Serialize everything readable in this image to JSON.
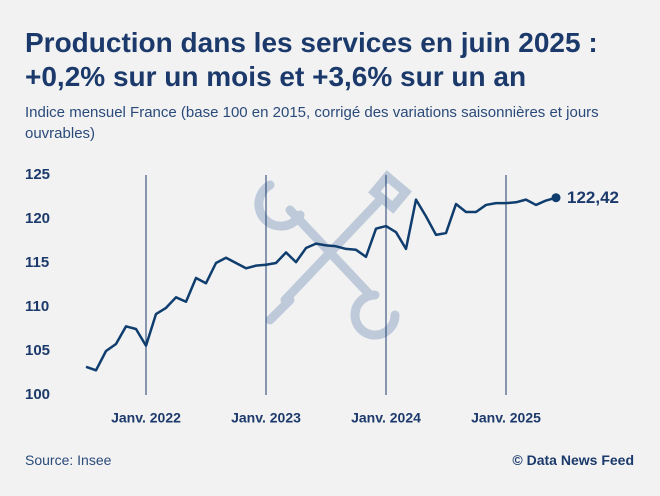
{
  "title": "Production dans les services en juin 2025 : +0,2% sur un mois et +3,6% sur un an",
  "chart_data": {
    "type": "line",
    "subtitle": "Indice mensuel France (base 100 en 2015, corrigé des variations saisonnières et jours ouvrables)",
    "categories": [
      null,
      null,
      null,
      null,
      null,
      null,
      "Janv. 2022",
      null,
      null,
      null,
      null,
      null,
      null,
      null,
      null,
      null,
      null,
      null,
      "Janv. 2023",
      null,
      null,
      null,
      null,
      null,
      null,
      null,
      null,
      null,
      null,
      null,
      "Janv. 2024",
      null,
      null,
      null,
      null,
      null,
      null,
      null,
      null,
      null,
      null,
      null,
      "Janv. 2025",
      null,
      null,
      null,
      null,
      null
    ],
    "series": [
      {
        "color": "#0f3d6e",
        "values": [
          103.2,
          102.8,
          105.0,
          105.8,
          107.8,
          107.5,
          105.6,
          109.2,
          109.9,
          111.1,
          110.6,
          113.3,
          112.7,
          115.0,
          115.6,
          115.0,
          114.4,
          114.7,
          114.8,
          115.0,
          116.2,
          115.1,
          116.7,
          117.2,
          117.0,
          116.9,
          116.6,
          116.5,
          115.7,
          118.9,
          119.2,
          118.5,
          116.6,
          122.2,
          120.3,
          118.2,
          118.4,
          121.7,
          120.8,
          120.8,
          121.6,
          121.8,
          121.8,
          121.9,
          122.2,
          121.6,
          122.1,
          122.42
        ],
        "value_labels": [
          null,
          null,
          null,
          null,
          null,
          null,
          null,
          null,
          null,
          null,
          null,
          null,
          null,
          null,
          null,
          null,
          null,
          null,
          null,
          null,
          null,
          null,
          null,
          null,
          null,
          null,
          null,
          null,
          null,
          null,
          null,
          null,
          null,
          null,
          null,
          null,
          null,
          null,
          null,
          null,
          null,
          null,
          null,
          null,
          null,
          null,
          null,
          "122,42"
        ]
      }
    ],
    "ylim": [
      100,
      125
    ],
    "yticks": [
      100,
      105,
      110,
      115,
      120,
      125
    ]
  },
  "source": "Source: Insee",
  "credit": "© Data News Feed"
}
